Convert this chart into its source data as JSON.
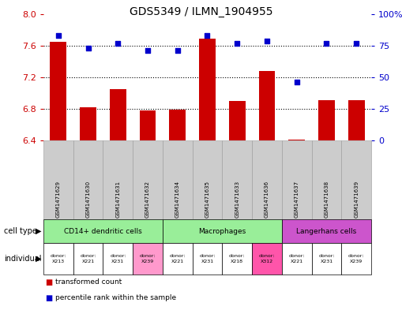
{
  "title": "GDS5349 / ILMN_1904955",
  "samples": [
    "GSM1471629",
    "GSM1471630",
    "GSM1471631",
    "GSM1471632",
    "GSM1471634",
    "GSM1471635",
    "GSM1471633",
    "GSM1471636",
    "GSM1471637",
    "GSM1471638",
    "GSM1471639"
  ],
  "bar_values": [
    7.65,
    6.82,
    7.05,
    6.78,
    6.79,
    7.69,
    6.9,
    7.28,
    6.41,
    6.91,
    6.91
  ],
  "dot_values": [
    83,
    73,
    77,
    71,
    71,
    83,
    77,
    79,
    46,
    77,
    77
  ],
  "ylim": [
    6.4,
    8.0
  ],
  "y2lim": [
    0,
    100
  ],
  "yticks": [
    6.4,
    6.8,
    7.2,
    7.6,
    8.0
  ],
  "y2ticks": [
    0,
    25,
    50,
    75,
    100
  ],
  "y2tick_labels": [
    "0",
    "25",
    "50",
    "75",
    "100%"
  ],
  "bar_color": "#CC0000",
  "dot_color": "#0000CC",
  "bar_bottom": 6.4,
  "grid_lines": [
    6.8,
    7.2,
    7.6
  ],
  "cell_types": [
    {
      "label": "CD14+ dendritic cells",
      "start": 0,
      "end": 4,
      "color": "#99EE99"
    },
    {
      "label": "Macrophages",
      "start": 4,
      "end": 8,
      "color": "#99EE99"
    },
    {
      "label": "Langerhans cells",
      "start": 8,
      "end": 11,
      "color": "#CC55CC"
    }
  ],
  "individuals": [
    {
      "label": "donor:\nX213",
      "color": "#FFFFFF"
    },
    {
      "label": "donor:\nX221",
      "color": "#FFFFFF"
    },
    {
      "label": "donor:\nX231",
      "color": "#FFFFFF"
    },
    {
      "label": "donor:\nX239",
      "color": "#FF99CC"
    },
    {
      "label": "donor:\nX221",
      "color": "#FFFFFF"
    },
    {
      "label": "donor:\nX231",
      "color": "#FFFFFF"
    },
    {
      "label": "donor:\nX218",
      "color": "#FFFFFF"
    },
    {
      "label": "donor:\nX312",
      "color": "#FF55AA"
    },
    {
      "label": "donor:\nX221",
      "color": "#FFFFFF"
    },
    {
      "label": "donor:\nX231",
      "color": "#FFFFFF"
    },
    {
      "label": "donor:\nX239",
      "color": "#FFFFFF"
    }
  ],
  "legend_bar_label": "transformed count",
  "legend_dot_label": "percentile rank within the sample",
  "cell_type_label": "cell type",
  "individual_label": "individual",
  "bg_color": "#FFFFFF",
  "tick_color_left": "#CC0000",
  "tick_color_right": "#0000CC",
  "gsm_bg_color": "#CCCCCC",
  "gsm_border_color": "#999999"
}
